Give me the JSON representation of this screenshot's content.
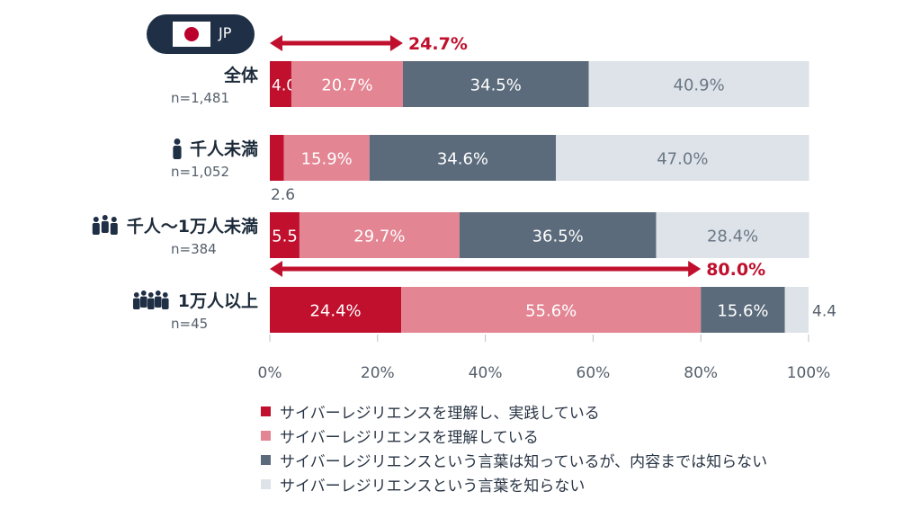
{
  "badge": {
    "country_code": "JP",
    "flag_icon": "japan-flag-icon"
  },
  "chart_data": {
    "type": "bar",
    "orientation": "horizontal",
    "stacked": true,
    "categories": [
      {
        "label": "全体",
        "n": "n=1,481",
        "icon": ""
      },
      {
        "label": "千人未満",
        "n": "n=1,052",
        "icon": "person-icon"
      },
      {
        "label": "千人～1万人未満",
        "n": "n=384",
        "icon": "group-icon"
      },
      {
        "label": "1万人以上",
        "n": "n=45",
        "icon": "large-group-icon"
      }
    ],
    "series": [
      {
        "name": "サイバーレジリエンスを理解し、実践している",
        "color": "#c0102e",
        "values": [
          4.0,
          2.6,
          5.5,
          24.4
        ],
        "labels": [
          "4.0",
          "2.6",
          "5.5",
          "24.4%"
        ]
      },
      {
        "name": "サイバーレジリエンスを理解している",
        "color": "#e38593",
        "values": [
          20.7,
          15.9,
          29.7,
          55.6
        ],
        "labels": [
          "20.7%",
          "15.9%",
          "29.7%",
          "55.6%"
        ]
      },
      {
        "name": "サイバーレジリエンスという言葉は知っているが、内容までは知らない",
        "color": "#5b6b7b",
        "values": [
          34.5,
          34.6,
          36.5,
          15.6
        ],
        "labels": [
          "34.5%",
          "34.6%",
          "36.5%",
          "15.6%"
        ]
      },
      {
        "name": "サイバーレジリエンスという言葉を知らない",
        "color": "#dde3e9",
        "values": [
          40.9,
          47.0,
          28.4,
          4.4
        ],
        "labels": [
          "40.9%",
          "47.0%",
          "28.4%",
          "4.4"
        ]
      }
    ],
    "annotations": [
      {
        "category_index": 0,
        "label": "24.7%",
        "value": 24.7
      },
      {
        "category_index": 3,
        "label": "80.0%",
        "value": 80.0
      }
    ],
    "xlim": [
      0,
      100
    ],
    "xticks": [
      "0%",
      "20%",
      "40%",
      "60%",
      "80%",
      "100%"
    ],
    "grid": false,
    "legend_position": "bottom",
    "accent_color": "#c0102e"
  }
}
